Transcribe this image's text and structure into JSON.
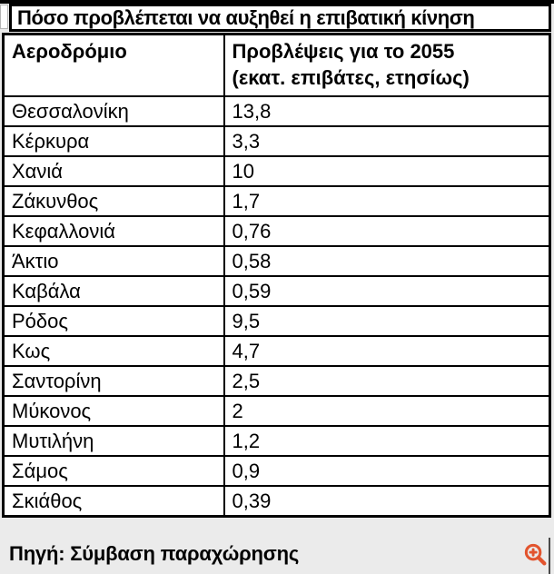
{
  "title": "Πόσο προβλέπεται να αυξηθεί η επιβατική κίνηση",
  "table": {
    "header": {
      "airport": "Αεροδρόμιο",
      "forecast_line1": "Προβλέψεις για το 2055",
      "forecast_line2": "(εκατ. επιβάτες, ετησίως)"
    },
    "rows": [
      {
        "airport": "Θεσσαλονίκη",
        "forecast": "13,8"
      },
      {
        "airport": "Κέρκυρα",
        "forecast": "3,3"
      },
      {
        "airport": "Χανιά",
        "forecast": "10"
      },
      {
        "airport": "Ζάκυνθος",
        "forecast": "1,7"
      },
      {
        "airport": "Κεφαλλονιά",
        "forecast": "0,76"
      },
      {
        "airport": "Άκτιο",
        "forecast": "0,58"
      },
      {
        "airport": "Καβάλα",
        "forecast": "0,59"
      },
      {
        "airport": "Ρόδος",
        "forecast": "9,5"
      },
      {
        "airport": "Κως",
        "forecast": "4,7"
      },
      {
        "airport": "Σαντορίνη",
        "forecast": "2,5"
      },
      {
        "airport": "Μύκονος",
        "forecast": "2"
      },
      {
        "airport": "Μυτιλήνη",
        "forecast": "1,2"
      },
      {
        "airport": "Σάμος",
        "forecast": "0,9"
      },
      {
        "airport": "Σκιάθος",
        "forecast": "0,39"
      }
    ]
  },
  "source": "Πηγή: Σύμβαση παραχώρησης",
  "icons": {
    "zoom": "magnifier-plus-icon"
  },
  "colors": {
    "accent": "#e2542e",
    "border": "#000000",
    "background": "#ebebeb",
    "cell_background": "#ffffff"
  },
  "chart_data": {
    "type": "table",
    "title": "Πόσο προβλέπεται να αυξηθεί η επιβατική κίνηση",
    "columns": [
      "Αεροδρόμιο",
      "Προβλέψεις για το 2055 (εκατ. επιβάτες, ετησίως)"
    ],
    "categories": [
      "Θεσσαλονίκη",
      "Κέρκυρα",
      "Χανιά",
      "Ζάκυνθος",
      "Κεφαλλονιά",
      "Άκτιο",
      "Καβάλα",
      "Ρόδος",
      "Κως",
      "Σαντορίνη",
      "Μύκονος",
      "Μυτιλήνη",
      "Σάμος",
      "Σκιάθος"
    ],
    "values": [
      13.8,
      3.3,
      10,
      1.7,
      0.76,
      0.58,
      0.59,
      9.5,
      4.7,
      2.5,
      2,
      1.2,
      0.9,
      0.39
    ],
    "unit": "εκατ. επιβάτες, ετησίως",
    "source": "Πηγή: Σύμβαση παραχώρησης"
  }
}
